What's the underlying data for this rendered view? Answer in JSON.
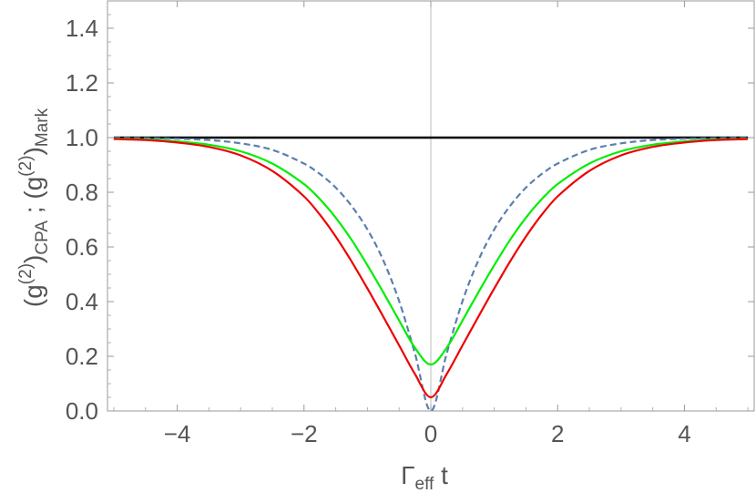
{
  "chart_data": {
    "type": "line",
    "xlabel": {
      "main": "Γ",
      "sub": "eff",
      "tail": " t"
    },
    "ylabel": {
      "part1": "(g",
      "sup1": "(2)",
      "close1": ")",
      "sub1": "CPA",
      "sep": " ; ",
      "part2": "(g",
      "sup2": "(2)",
      "close2": ")",
      "sub2": "Mark"
    },
    "xlim": [
      -5.1,
      5.1
    ],
    "ylim": [
      0.0,
      1.5
    ],
    "xticks": [
      -4,
      -2,
      0,
      2,
      4
    ],
    "xtick_labels": [
      "−4",
      "−2",
      "0",
      "2",
      "4"
    ],
    "yticks": [
      0.0,
      0.2,
      0.4,
      0.6,
      0.8,
      1.0,
      1.2,
      1.4
    ],
    "ytick_labels": [
      "0.0",
      "0.2",
      "0.4",
      "0.6",
      "0.8",
      "1.0",
      "1.2",
      "1.4"
    ],
    "grid": false,
    "frame": true,
    "series": [
      {
        "color": "#000000",
        "style": "solid",
        "x": [
          -5,
          -4,
          -3,
          -2,
          -1,
          0,
          1,
          2,
          3,
          4,
          5
        ],
        "y": [
          1.0,
          1.0,
          1.0,
          1.0,
          1.0,
          1.0,
          1.0,
          1.0,
          1.0,
          1.0,
          1.0
        ]
      },
      {
        "color": "#5b7faf",
        "style": "dashed",
        "x": [
          -5,
          -4.5,
          -4,
          -3.5,
          -3,
          -2.5,
          -2,
          -1.75,
          -1.5,
          -1.25,
          -1,
          -0.75,
          -0.5,
          -0.25,
          0,
          0.25,
          0.5,
          0.75,
          1,
          1.25,
          1.5,
          1.75,
          2,
          2.5,
          3,
          3.5,
          4,
          4.5,
          5
        ],
        "y": [
          0.999,
          0.998,
          0.996,
          0.991,
          0.979,
          0.955,
          0.905,
          0.867,
          0.817,
          0.75,
          0.664,
          0.551,
          0.402,
          0.21,
          0.0,
          0.21,
          0.402,
          0.551,
          0.664,
          0.75,
          0.817,
          0.867,
          0.905,
          0.955,
          0.979,
          0.991,
          0.996,
          0.998,
          0.999
        ]
      },
      {
        "color": "#00ee00",
        "style": "solid",
        "x": [
          -5,
          -4.5,
          -4,
          -3.5,
          -3,
          -2.5,
          -2,
          -1.75,
          -1.5,
          -1.25,
          -1,
          -0.75,
          -0.5,
          -0.25,
          0,
          0.25,
          0.5,
          0.75,
          1,
          1.25,
          1.5,
          1.75,
          2,
          2.5,
          3,
          3.5,
          4,
          4.5,
          5
        ],
        "y": [
          0.996,
          0.993,
          0.986,
          0.974,
          0.95,
          0.905,
          0.83,
          0.775,
          0.707,
          0.626,
          0.533,
          0.434,
          0.331,
          0.231,
          0.17,
          0.231,
          0.331,
          0.434,
          0.533,
          0.626,
          0.707,
          0.775,
          0.83,
          0.905,
          0.95,
          0.974,
          0.986,
          0.993,
          0.996
        ]
      },
      {
        "color": "#ee0000",
        "style": "solid",
        "x": [
          -5,
          -4.5,
          -4,
          -3.5,
          -3,
          -2.5,
          -2,
          -1.75,
          -1.5,
          -1.25,
          -1,
          -0.75,
          -0.5,
          -0.25,
          0,
          0.25,
          0.5,
          0.75,
          1,
          1.25,
          1.5,
          1.75,
          2,
          2.5,
          3,
          3.5,
          4,
          4.5,
          5
        ],
        "y": [
          0.995,
          0.991,
          0.982,
          0.966,
          0.935,
          0.878,
          0.785,
          0.718,
          0.638,
          0.547,
          0.448,
          0.345,
          0.24,
          0.135,
          0.05,
          0.135,
          0.24,
          0.345,
          0.448,
          0.547,
          0.638,
          0.718,
          0.785,
          0.878,
          0.935,
          0.966,
          0.982,
          0.991,
          0.995
        ]
      }
    ]
  }
}
